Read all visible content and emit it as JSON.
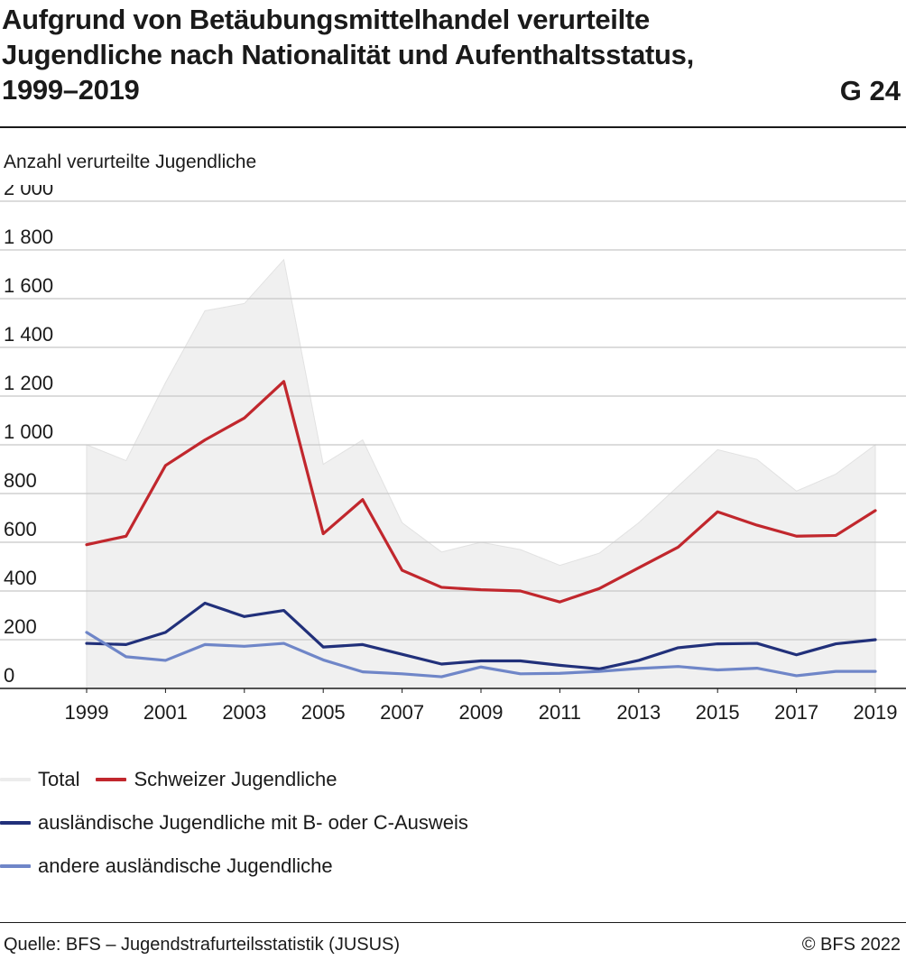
{
  "header": {
    "title_lines": [
      "Aufgrund von Betäubungsmittelhandel verurteilte",
      "Jugendliche nach Nationalität und Aufenthaltsstatus,",
      "1999–2019"
    ],
    "code": "G 24"
  },
  "footer": {
    "source": "Quelle: BFS – Jugendstrafurteilsstatistik (JUSUS)",
    "copyright": "© BFS 2022"
  },
  "chart_data": {
    "type": "line",
    "title": "Aufgrund von Betäubungsmittelhandel verurteilte Jugendliche nach Nationalität und Aufenthaltsstatus, 1999–2019",
    "ylabel": "Anzahl verurteilte Jugendliche",
    "xlabel": "",
    "x": [
      1999,
      2000,
      2001,
      2002,
      2003,
      2004,
      2005,
      2006,
      2007,
      2008,
      2009,
      2010,
      2011,
      2012,
      2013,
      2014,
      2015,
      2016,
      2017,
      2018,
      2019
    ],
    "xticks": [
      "1999",
      "2001",
      "2003",
      "2005",
      "2007",
      "2009",
      "2011",
      "2013",
      "2015",
      "2017",
      "2019"
    ],
    "ylim": [
      0,
      2000
    ],
    "yticks": [
      "0",
      "200",
      "400",
      "600",
      "800",
      "1 000",
      "1 200",
      "1 400",
      "1 600",
      "1 800",
      "2 000"
    ],
    "grid": true,
    "legend_position": "bottom",
    "series": [
      {
        "name": "Total",
        "kind": "area",
        "color": "#f0f0f0",
        "values": [
          1000,
          935,
          1255,
          1550,
          1580,
          1760,
          920,
          1020,
          680,
          560,
          600,
          570,
          505,
          555,
          680,
          830,
          980,
          940,
          810,
          880,
          1000
        ]
      },
      {
        "name": "Schweizer Jugendliche",
        "kind": "line",
        "color": "#c1272d",
        "values": [
          590,
          625,
          915,
          1020,
          1110,
          1260,
          635,
          775,
          485,
          415,
          405,
          400,
          355,
          410,
          495,
          580,
          725,
          670,
          625,
          628,
          730
        ]
      },
      {
        "name": "ausländische Jugendliche mit B- oder C-Ausweis",
        "kind": "line",
        "color": "#21307a",
        "values": [
          185,
          180,
          230,
          350,
          295,
          320,
          170,
          180,
          140,
          100,
          113,
          113,
          95,
          80,
          115,
          167,
          183,
          185,
          138,
          183,
          200
        ]
      },
      {
        "name": "andere ausländische Jugendliche",
        "kind": "line",
        "color": "#6f86c8",
        "values": [
          230,
          130,
          115,
          180,
          173,
          185,
          117,
          68,
          60,
          48,
          88,
          60,
          62,
          70,
          82,
          90,
          76,
          83,
          52,
          70,
          70
        ]
      }
    ]
  }
}
